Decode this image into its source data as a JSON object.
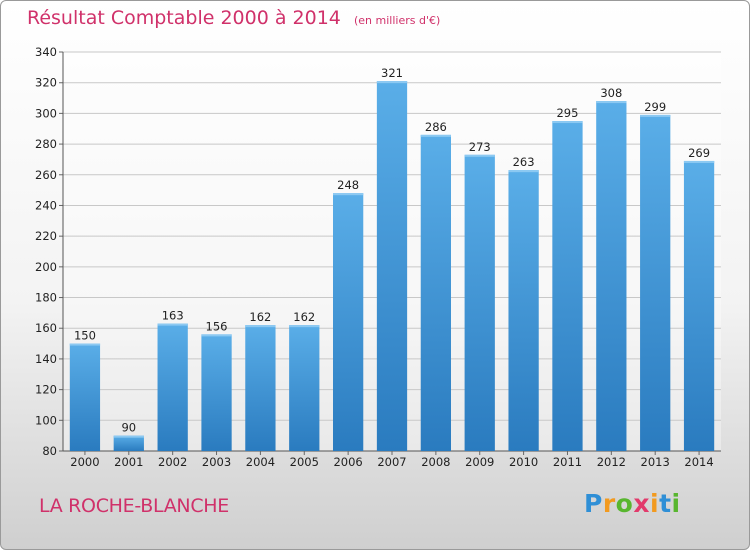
{
  "title": "Résultat Comptable 2000 à 2014",
  "subtitle": "(en milliers d'€)",
  "city": "LA ROCHE-BLANCHE",
  "logo": {
    "letters": [
      "P",
      "r",
      "o",
      "x",
      "i",
      "t",
      "i"
    ],
    "colors": [
      "#2f8fd6",
      "#f29a1f",
      "#58b62f",
      "#e23a6b",
      "#f29a1f",
      "#2f8fd6",
      "#58b62f"
    ]
  },
  "colors": {
    "bar_top": "#5aaee8",
    "bar_bottom": "#2a7bbf",
    "grid": "#c8c8c8",
    "text_accent": "#d0316a"
  },
  "chart_data": {
    "type": "bar",
    "categories": [
      "2000",
      "2001",
      "2002",
      "2003",
      "2004",
      "2005",
      "2006",
      "2007",
      "2008",
      "2009",
      "2010",
      "2011",
      "2012",
      "2013",
      "2014"
    ],
    "values": [
      150,
      90,
      163,
      156,
      162,
      162,
      248,
      321,
      286,
      273,
      263,
      295,
      308,
      299,
      269
    ],
    "ylim": [
      80,
      340
    ],
    "yticks": [
      80,
      100,
      120,
      140,
      160,
      180,
      200,
      220,
      240,
      260,
      280,
      300,
      320,
      340
    ],
    "grid": true,
    "title": "Résultat Comptable 2000 à 2014",
    "subtitle": "(en milliers d'€)"
  }
}
